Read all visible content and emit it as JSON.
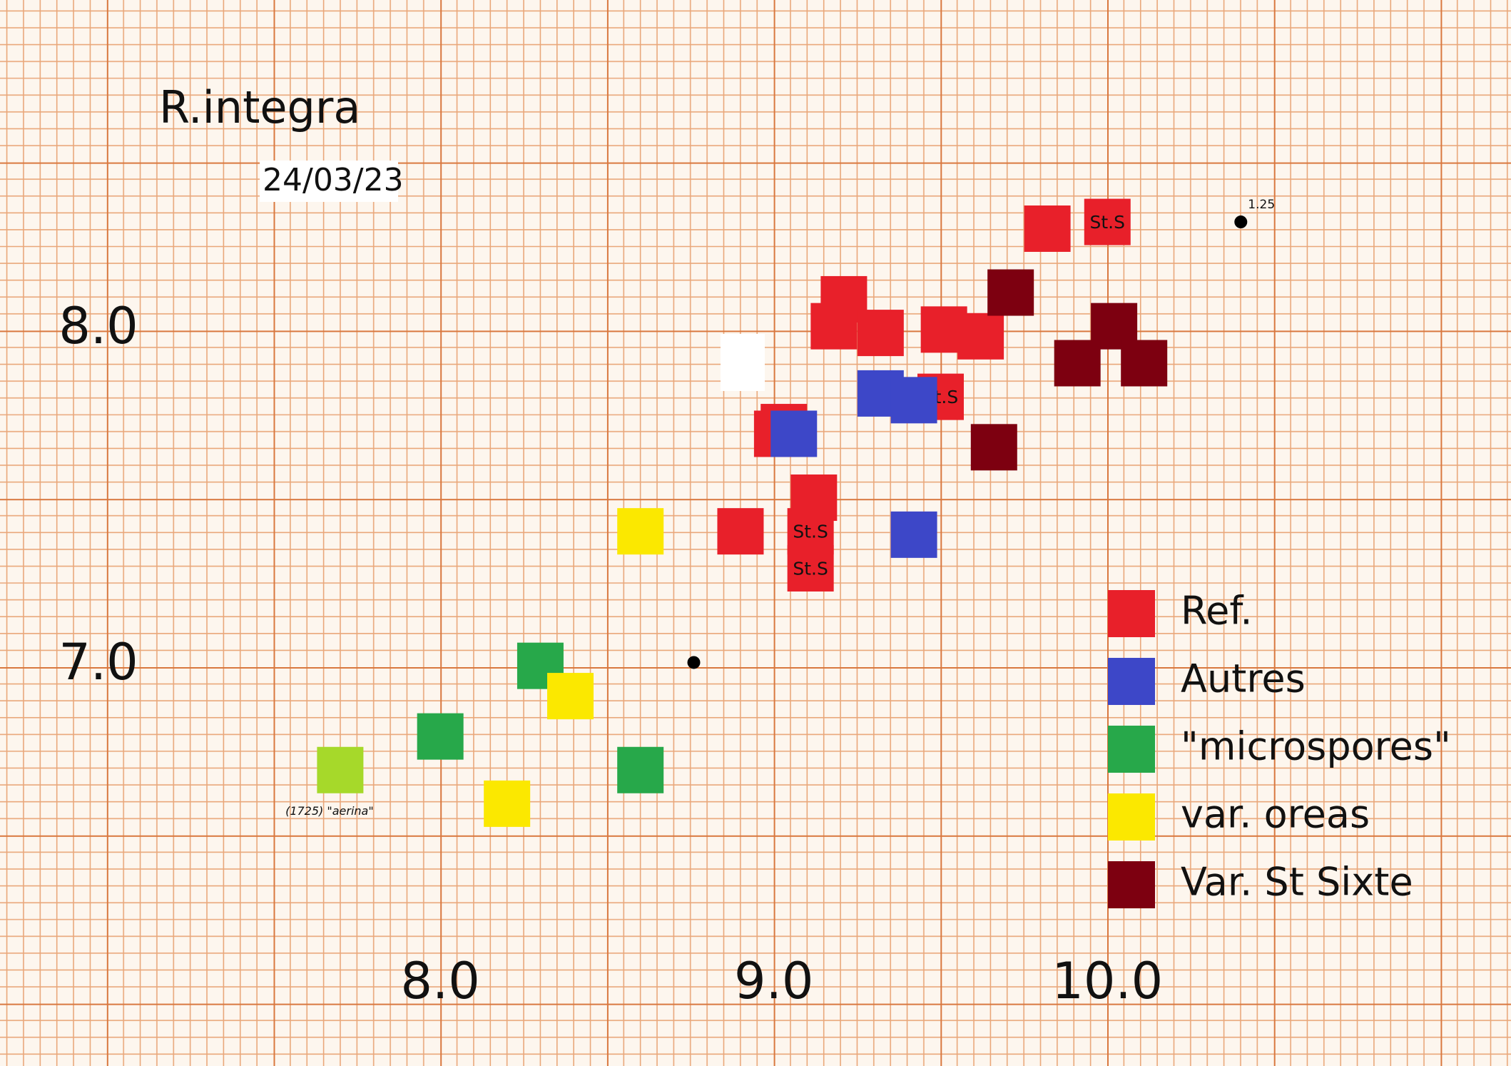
{
  "chart_data": {
    "type": "scatter",
    "title": "R.integra",
    "subtitle": "24/03/23",
    "xlim": [
      6.68,
      11.21
    ],
    "ylim": [
      5.81,
      8.98
    ],
    "xticks": [
      {
        "value": 8,
        "label": "8.0"
      },
      {
        "value": 9,
        "label": "9.0"
      },
      {
        "value": 10,
        "label": "10.0"
      }
    ],
    "yticks": [
      {
        "value": 7,
        "label": "7.0"
      },
      {
        "value": 8,
        "label": "8.0"
      }
    ],
    "grid": true,
    "legend": "right",
    "series": [
      {
        "name": "Ref.",
        "color": "#e8202a",
        "marker": "square",
        "x": [
          9.82,
          10.0,
          9.21,
          9.18,
          9.32,
          9.51,
          9.62,
          9.03,
          9.01,
          9.5,
          9.12,
          8.9,
          9.11,
          9.11
        ],
        "values": [
          8.3,
          8.32,
          8.09,
          8.01,
          7.99,
          8.0,
          7.98,
          7.71,
          7.69,
          7.8,
          7.5,
          7.4,
          7.4,
          7.29
        ],
        "point_labels": [
          null,
          "St.S",
          null,
          null,
          null,
          null,
          null,
          null,
          null,
          "St.S",
          null,
          null,
          "St.S",
          "St.S"
        ]
      },
      {
        "name": "Autres",
        "color": "#3d47c8",
        "marker": "square",
        "x": [
          9.32,
          9.42,
          9.06,
          9.42
        ],
        "values": [
          7.81,
          7.79,
          7.69,
          7.39
        ]
      },
      {
        "name": "\"microspores\"",
        "color": "#27a84a",
        "marker": "square",
        "x": [
          8.3,
          8.0,
          8.6
        ],
        "values": [
          7.0,
          6.79,
          6.69
        ]
      },
      {
        "name": "var. oreas",
        "color": "#fbe800",
        "marker": "square",
        "x": [
          8.6,
          8.39,
          8.2
        ],
        "values": [
          7.4,
          6.91,
          6.59
        ]
      },
      {
        "name": "Var. St Sixte",
        "color": "#7d0010",
        "marker": "square",
        "x": [
          9.71,
          10.02,
          9.91,
          10.11,
          9.66
        ],
        "values": [
          8.11,
          8.01,
          7.9,
          7.9,
          7.65
        ]
      },
      {
        "color": "#a6d92a",
        "marker": "square",
        "x": [
          7.7
        ],
        "values": [
          6.69
        ],
        "point_labels": [
          "(1725) \"aerina\""
        ]
      },
      {
        "color": "#000000",
        "marker": "dot",
        "x": [
          10.4,
          8.76
        ],
        "values": [
          8.32,
          7.01
        ],
        "point_labels": [
          "1.25",
          null
        ]
      }
    ]
  }
}
